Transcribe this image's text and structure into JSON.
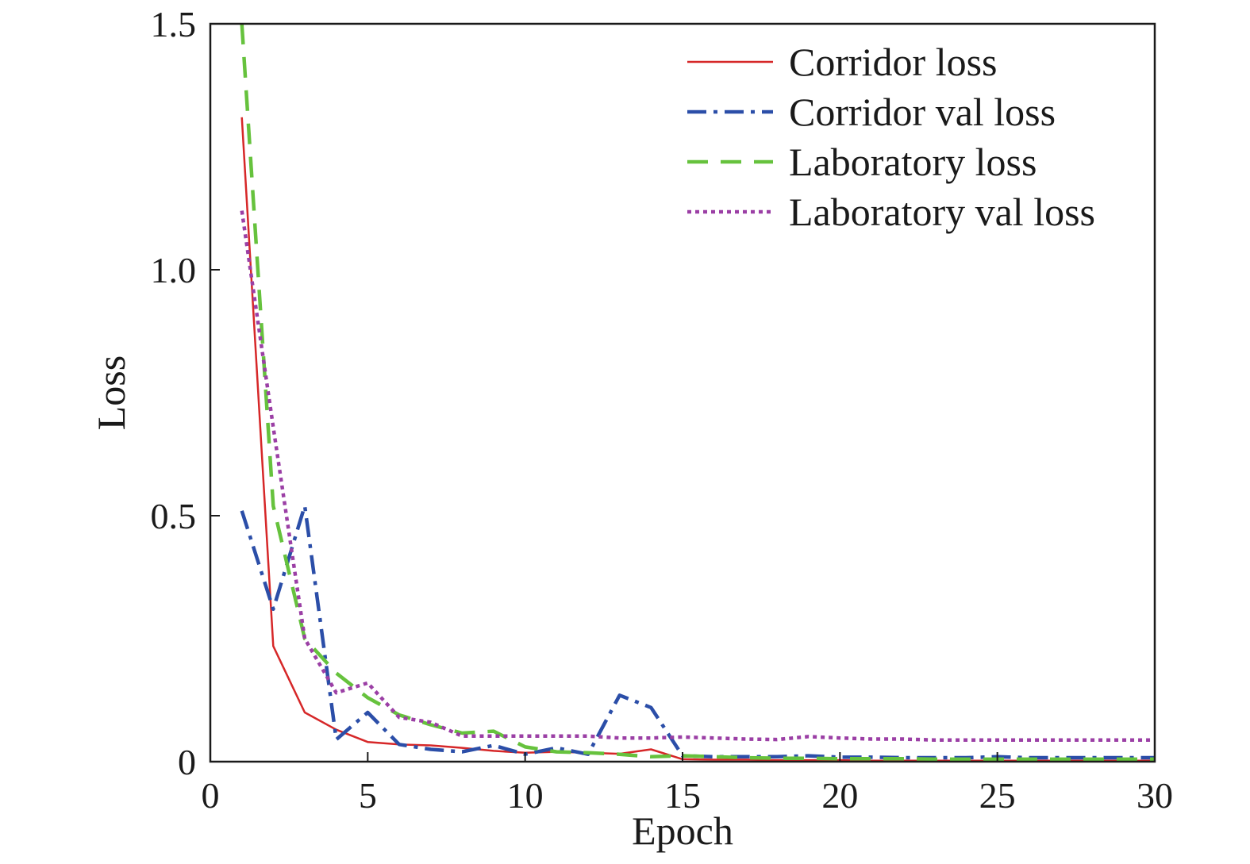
{
  "chart_data": {
    "type": "line",
    "title": "",
    "xlabel": "Epoch",
    "ylabel": "Loss",
    "xlim": [
      0,
      30
    ],
    "ylim": [
      0,
      1.5
    ],
    "xticks": [
      0,
      5,
      10,
      15,
      20,
      25,
      30
    ],
    "xtick_labels": [
      "0",
      "5",
      "10",
      "15",
      "20",
      "25",
      "30"
    ],
    "yticks": [
      0,
      0.5,
      1.0,
      1.5
    ],
    "ytick_labels": [
      "0",
      "0.5",
      "1.0",
      "1.5"
    ],
    "grid": false,
    "legend": {
      "position": "top-right"
    },
    "x": [
      1,
      2,
      3,
      4,
      5,
      6,
      7,
      8,
      9,
      10,
      11,
      12,
      13,
      14,
      15,
      16,
      17,
      18,
      19,
      20,
      21,
      22,
      23,
      24,
      25,
      26,
      27,
      28,
      29,
      30
    ],
    "series": [
      {
        "name": "Corridor loss",
        "color": "#d62728",
        "dash": "solid",
        "values": [
          1.31,
          0.235,
          0.1,
          0.065,
          0.04,
          0.035,
          0.033,
          0.028,
          0.022,
          0.018,
          0.02,
          0.018,
          0.016,
          0.025,
          0.005,
          0.004,
          0.004,
          0.003,
          0.003,
          0.003,
          0.002,
          0.002,
          0.002,
          0.002,
          0.002,
          0.002,
          0.002,
          0.002,
          0.002,
          0.002
        ]
      },
      {
        "name": "Corridor val loss",
        "color": "#2b4ea8",
        "dash": "dashdot",
        "values": [
          0.51,
          0.31,
          0.52,
          0.045,
          0.1,
          0.035,
          0.025,
          0.02,
          0.033,
          0.015,
          0.028,
          0.015,
          0.135,
          0.11,
          0.012,
          0.01,
          0.01,
          0.01,
          0.012,
          0.009,
          0.009,
          0.008,
          0.008,
          0.008,
          0.01,
          0.008,
          0.008,
          0.008,
          0.008,
          0.008
        ]
      },
      {
        "name": "Laboratory loss",
        "color": "#66c23d",
        "dash": "dashed",
        "values": [
          1.5,
          0.52,
          0.25,
          0.18,
          0.13,
          0.095,
          0.075,
          0.058,
          0.062,
          0.03,
          0.02,
          0.018,
          0.015,
          0.01,
          0.012,
          0.01,
          0.008,
          0.007,
          0.007,
          0.006,
          0.006,
          0.006,
          0.005,
          0.005,
          0.005,
          0.005,
          0.005,
          0.005,
          0.005,
          0.005
        ]
      },
      {
        "name": "Laboratory val loss",
        "color": "#9b3fa5",
        "dash": "dotted",
        "values": [
          1.12,
          0.68,
          0.25,
          0.14,
          0.16,
          0.09,
          0.08,
          0.052,
          0.052,
          0.052,
          0.052,
          0.052,
          0.048,
          0.048,
          0.05,
          0.048,
          0.046,
          0.045,
          0.051,
          0.048,
          0.046,
          0.046,
          0.044,
          0.044,
          0.044,
          0.044,
          0.044,
          0.044,
          0.044,
          0.044
        ]
      }
    ]
  }
}
